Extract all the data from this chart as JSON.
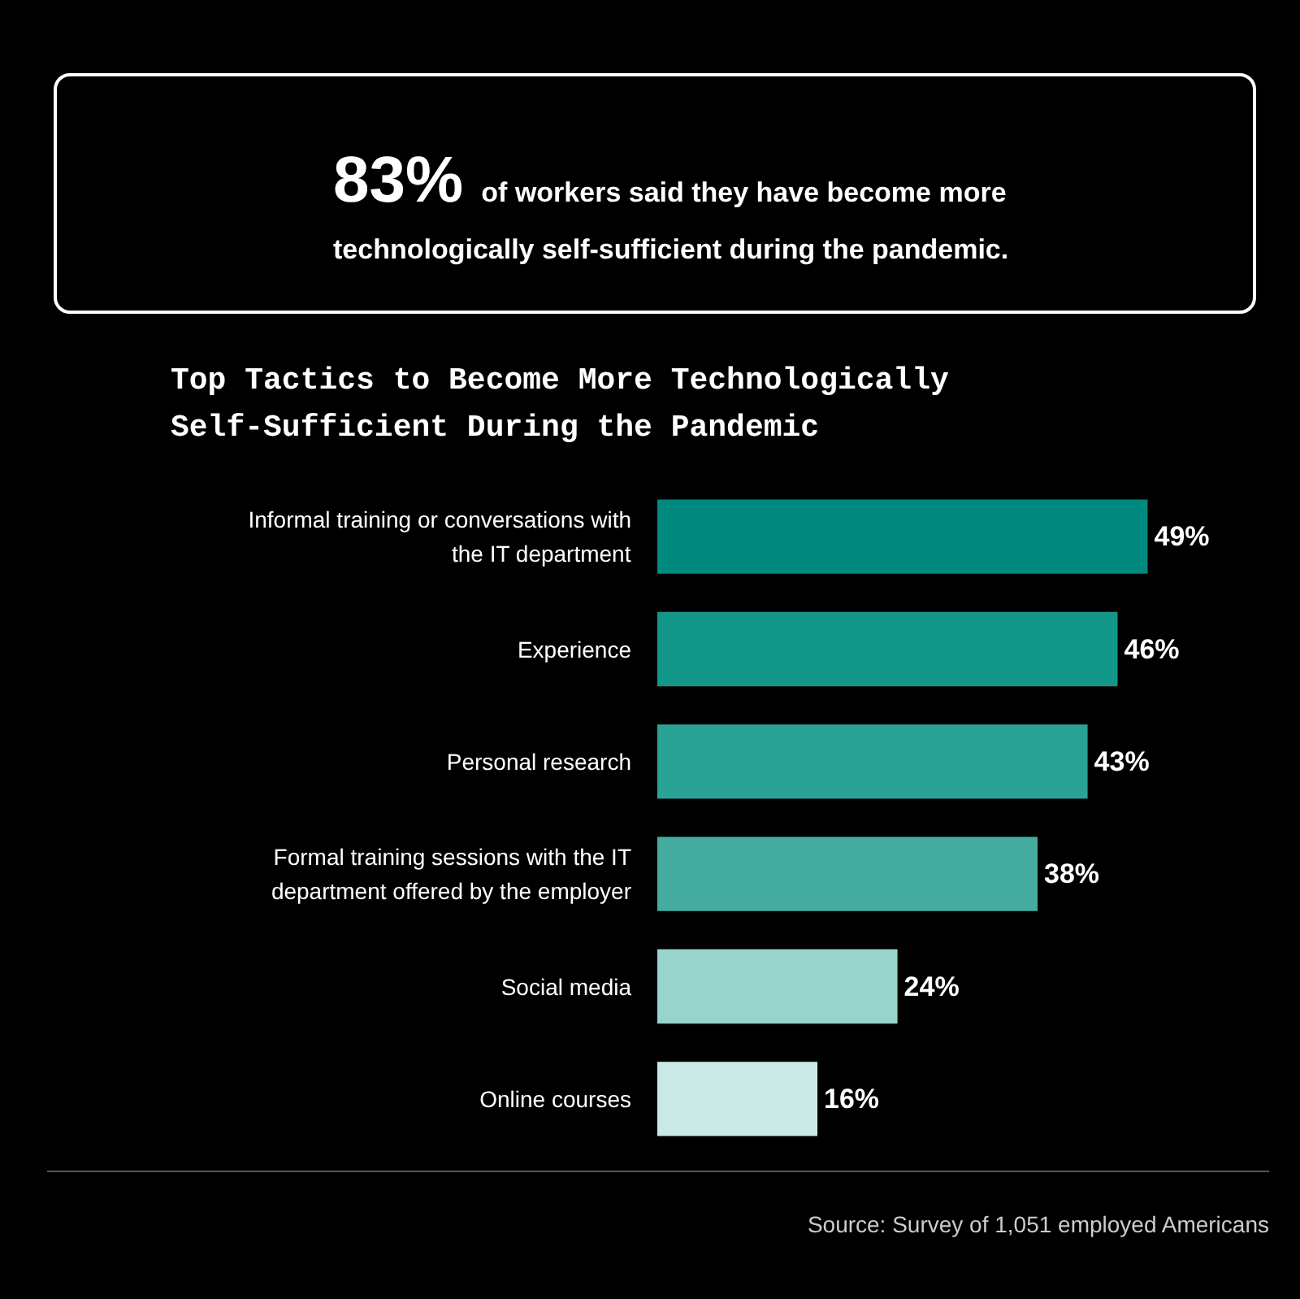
{
  "chart_data": {
    "type": "bar",
    "orientation": "horizontal",
    "title": "Top Tactics to Become More Technologically Self-Sufficient During the Pandemic",
    "categories": [
      "Informal training or conversations with the IT department",
      "Experience",
      "Personal research",
      "Formal training sessions with the IT department offered by the employer",
      "Social media",
      "Online courses"
    ],
    "values": [
      49,
      46,
      43,
      38,
      24,
      16
    ],
    "colors": [
      "#00897e",
      "#13978b",
      "#2aa296",
      "#45aca2",
      "#98d4cc",
      "#c9e9e6"
    ],
    "value_labels": [
      "49%",
      "46%",
      "43%",
      "38%",
      "24%",
      "16%"
    ],
    "tick_labels": "y",
    "annotations": [
      "83% of workers said they have become more technologically self-sufficient during the pandemic.",
      "Source: Survey of 1,051 employed Americans"
    ]
  }
}
